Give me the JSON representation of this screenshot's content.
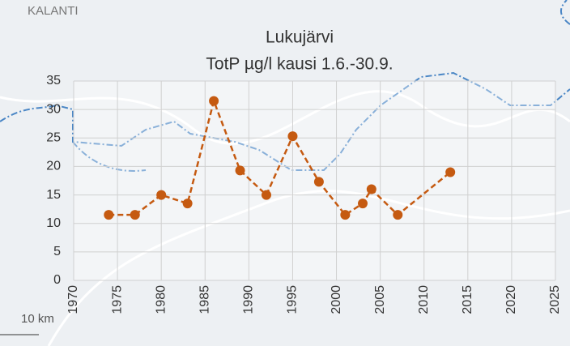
{
  "chart_data": {
    "type": "line",
    "title": "Lukujärvi",
    "subtitle": "TotP µg/l kausi 1.6.-30.9.",
    "map_labels": [
      "KALANTI",
      "10 km"
    ],
    "series": [
      {
        "name": "TotP",
        "color": "#c55a11",
        "x": [
          1974,
          1977,
          1980,
          1983,
          1986,
          1989,
          1992,
          1995,
          1998,
          2001,
          2003,
          2004,
          2007,
          2013
        ],
        "values": [
          11.5,
          11.5,
          15,
          13.5,
          31.5,
          19.3,
          15,
          25.3,
          17.3,
          11.5,
          13.5,
          16,
          11.5,
          19
        ]
      }
    ],
    "xlim": [
      1970,
      2025
    ],
    "xticks": [
      1970,
      1975,
      1980,
      1985,
      1990,
      1995,
      2000,
      2005,
      2010,
      2015,
      2020,
      2025
    ],
    "ylim": [
      0,
      35
    ],
    "yticks": [
      0,
      5,
      10,
      15,
      20,
      25,
      30,
      35
    ],
    "grid": true,
    "line_style": "dashed"
  }
}
